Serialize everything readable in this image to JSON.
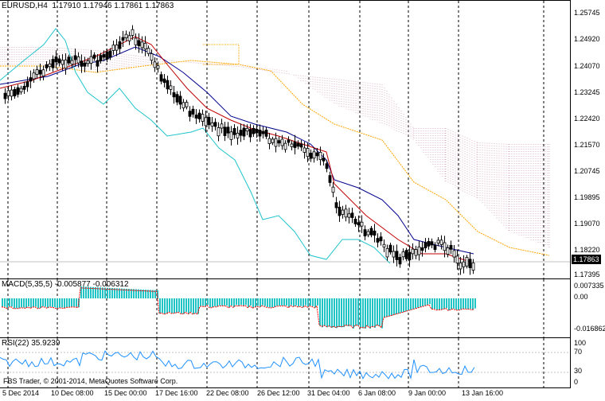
{
  "main": {
    "title_symbol": "EURUSD,H4",
    "ohlc": "1.17910 1.17946 1.17861 1.17863",
    "price_labels": [
      "1.25745",
      "1.24920",
      "1.24070",
      "1.23245",
      "1.22420",
      "1.21570",
      "1.20745",
      "1.19895",
      "1.19070",
      "1.18220",
      "1.17395"
    ],
    "current_price": "1.17863"
  },
  "macd": {
    "title": "MACD(5,35,5) -0.005877 -0.006312",
    "labels": [
      "0.007335",
      "0.00",
      "-0.016862"
    ]
  },
  "rsi": {
    "title": "RSI(22) 35.9239",
    "labels": [
      "100",
      "70",
      "30",
      "0"
    ]
  },
  "footer": {
    "copyright": "FBS Trader, © 2001-2014, MetaQuotes Software Corp.",
    "time_labels": [
      "5 Dec 2014",
      "10 Dec 08:00",
      "15 Dec 00:00",
      "17 Dec 16:00",
      "22 Dec 08:00",
      "26 Dec 12:00",
      "31 Dec 04:00",
      "6 Jan 08:00",
      "9 Jan 00:00",
      "13 Jan 16:00"
    ]
  },
  "colors": {
    "candle": "#000000",
    "tenkan": "#c00000",
    "kijun": "#00008b",
    "chikou": "#20c4cc",
    "senkou_a": "#ffa500",
    "cloud": "#c080a0",
    "macd_hist": "#20c4c4",
    "macd_signal": "#ff0000",
    "rsi": "#1e90ff"
  }
}
